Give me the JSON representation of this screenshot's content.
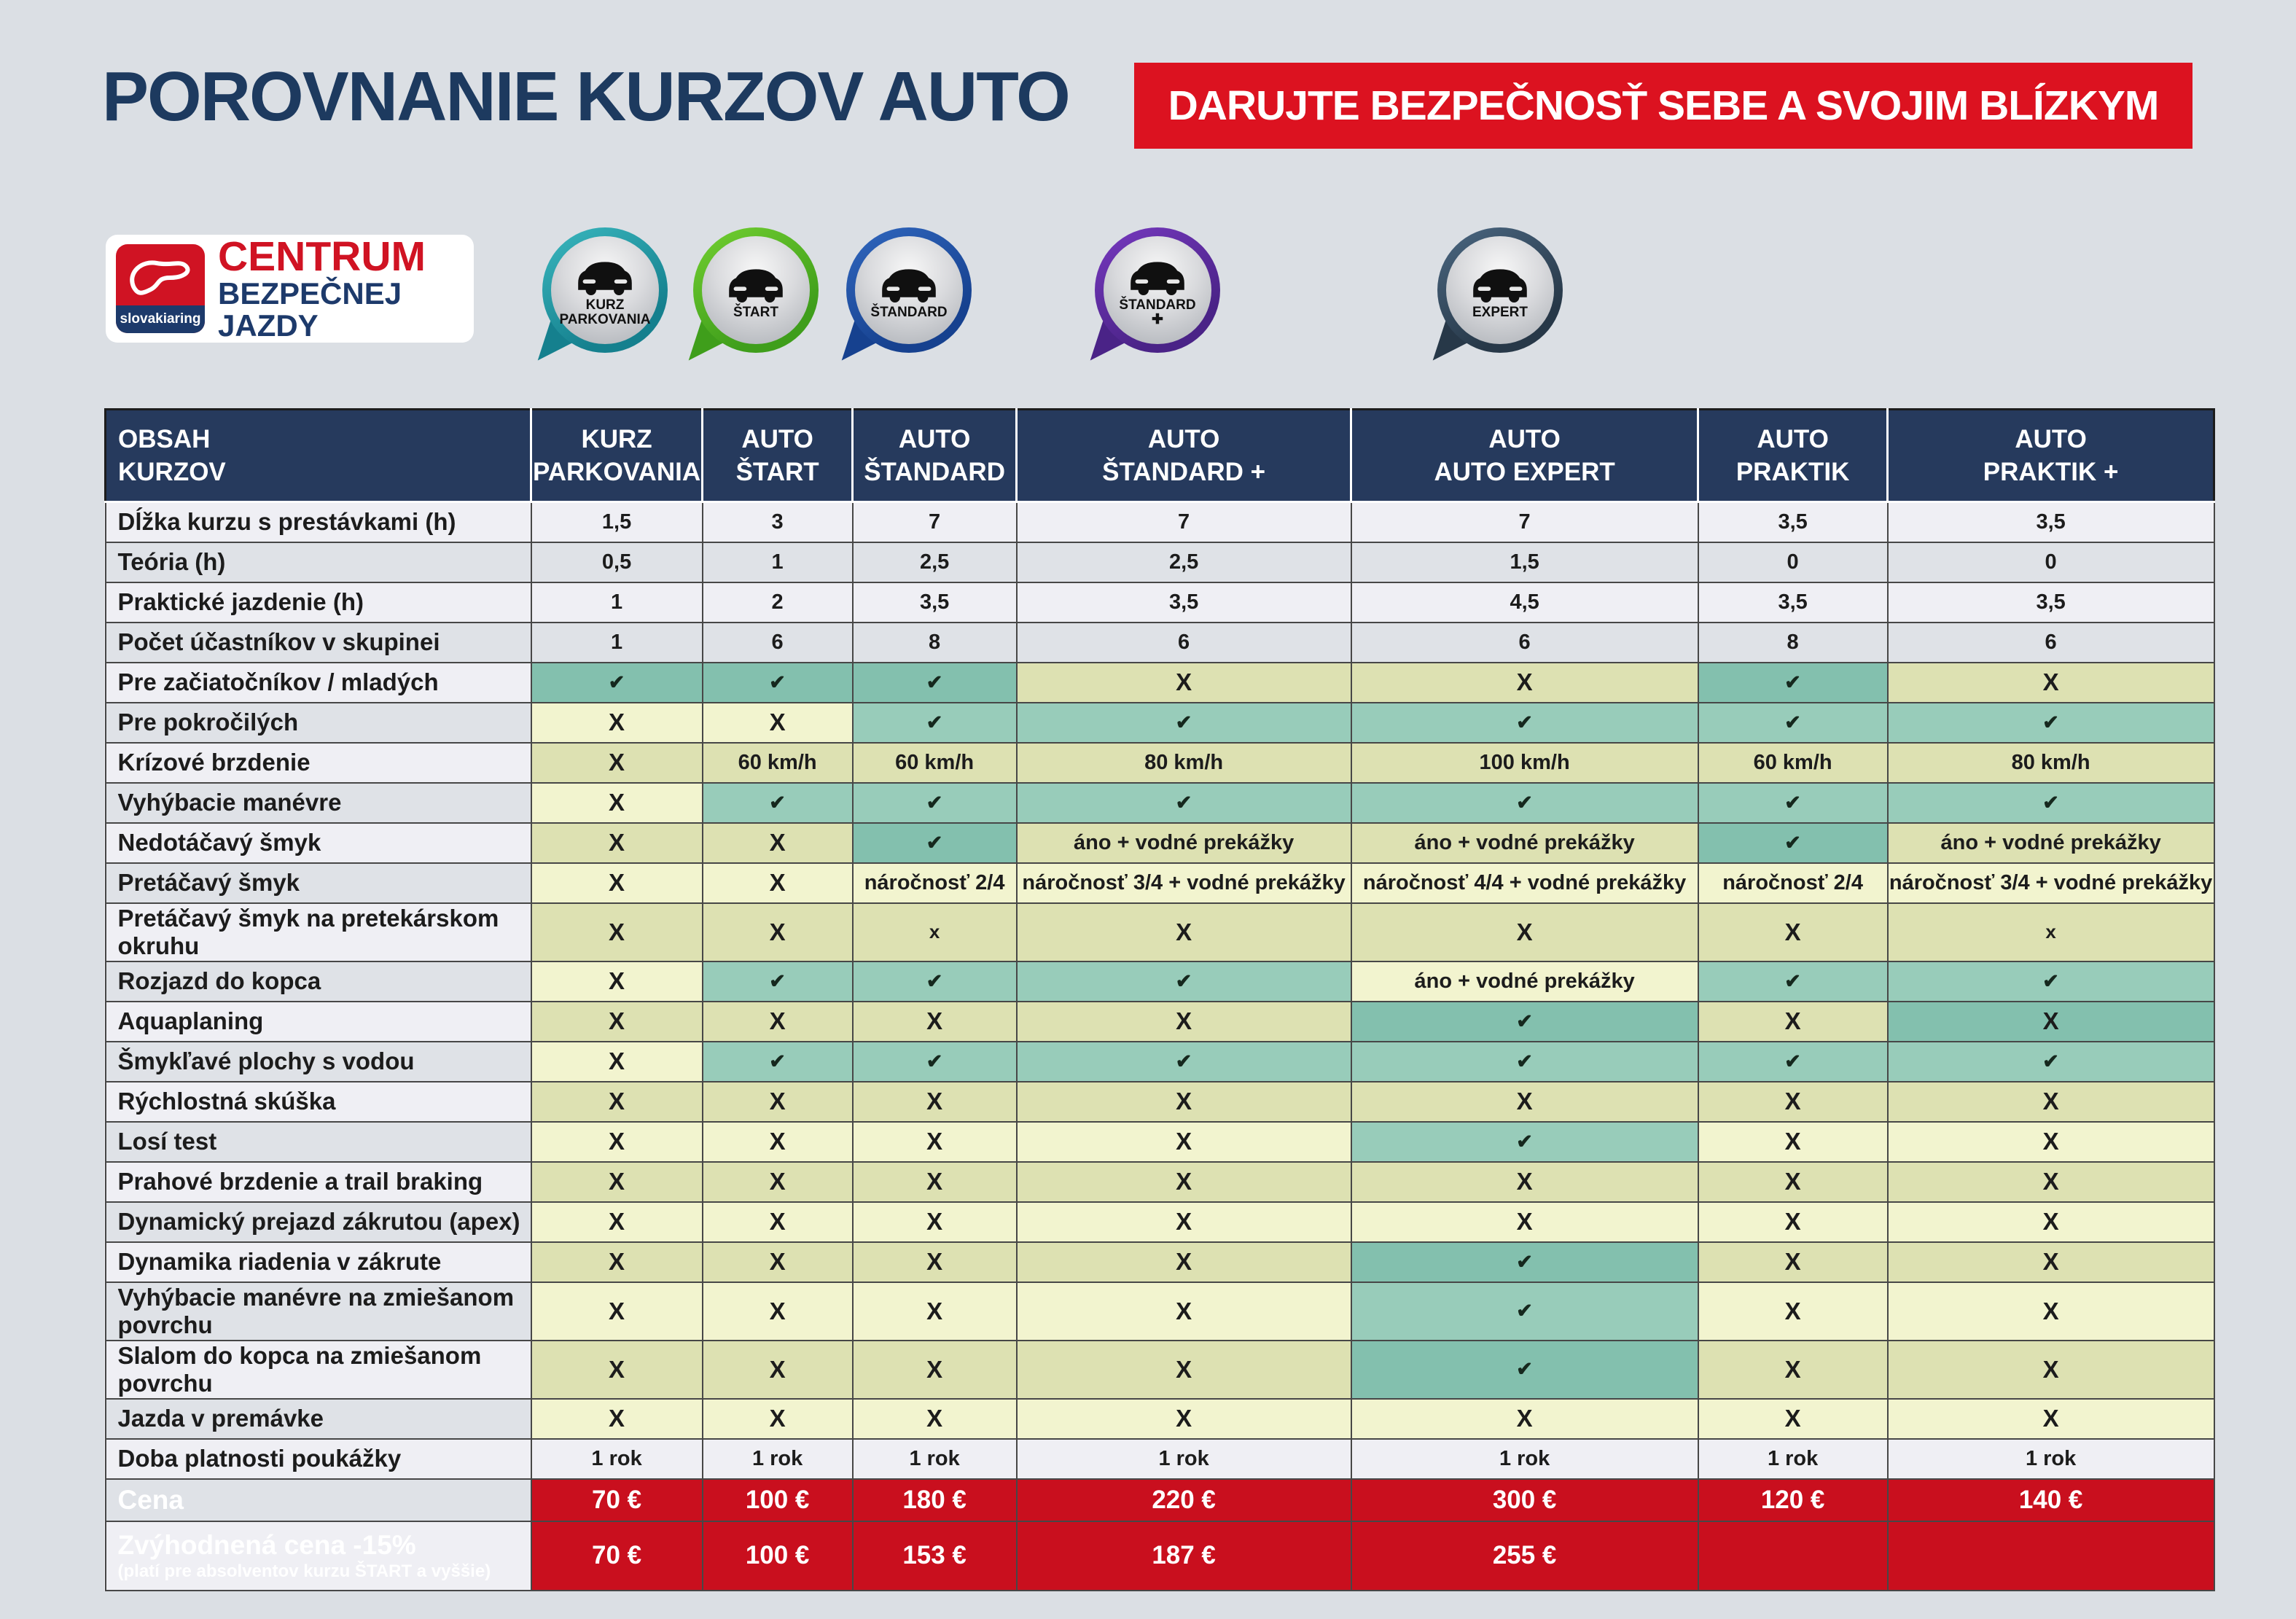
{
  "page": {
    "title": "POROVNANIE KURZOV AUTO",
    "banner": "DARUJTE BEZPEČNOSŤ SEBE A SVOJIM BLÍZKYM"
  },
  "logo": {
    "brand": "slovakiaring",
    "line1": "CENTRUM",
    "line2": "BEZPEČNEJ JAZDY"
  },
  "badges": [
    {
      "label": "KURZ\nPARKOVANIA",
      "icon": "parking-car",
      "color_light": "#35b0b8",
      "color_dark": "#15808e"
    },
    {
      "label": "ŠTART",
      "icon": "cars-traffic-light",
      "color_light": "#6cc92e",
      "color_dark": "#3f9e1b"
    },
    {
      "label": "ŠTANDARD",
      "icon": "car-skid-cone",
      "color_light": "#2d62b8",
      "color_dark": "#16418f"
    },
    {
      "label": "ŠTANDARD\n✚",
      "icon": "car-skid-cone",
      "color_light": "#7136b8",
      "color_dark": "#4a2387"
    },
    {
      "label": "EXPERT",
      "icon": "car-skid-cone",
      "color_light": "#46617a",
      "color_dark": "#273848"
    }
  ],
  "table": {
    "header": [
      "OBSAH\nKURZOV",
      "KURZ\nPARKOVANIA",
      "AUTO\nŠTART",
      "AUTO\nŠTANDARD",
      "AUTO\nŠTANDARD +",
      "AUTO\nAUTO EXPERT",
      "AUTO\nPRAKTIK",
      "AUTO\nPRAKTIK +"
    ],
    "rows": [
      {
        "label": "Dĺžka kurzu s prestávkami (h)",
        "cells": [
          {
            "t": "1,5",
            "bg": "s"
          },
          {
            "t": "3",
            "bg": "s"
          },
          {
            "t": "7",
            "bg": "s"
          },
          {
            "t": "7",
            "bg": "s"
          },
          {
            "t": "7",
            "bg": "s"
          },
          {
            "t": "3,5",
            "bg": "s"
          },
          {
            "t": "3,5",
            "bg": "s"
          }
        ]
      },
      {
        "label": "Teória (h)",
        "cells": [
          {
            "t": "0,5",
            "bg": "s"
          },
          {
            "t": "1",
            "bg": "s"
          },
          {
            "t": "2,5",
            "bg": "s"
          },
          {
            "t": "2,5",
            "bg": "s"
          },
          {
            "t": "1,5",
            "bg": "s"
          },
          {
            "t": "0",
            "bg": "s"
          },
          {
            "t": "0",
            "bg": "s"
          }
        ]
      },
      {
        "label": "Praktické jazdenie (h)",
        "cells": [
          {
            "t": "1",
            "bg": "s"
          },
          {
            "t": "2",
            "bg": "s"
          },
          {
            "t": "3,5",
            "bg": "s"
          },
          {
            "t": "3,5",
            "bg": "s"
          },
          {
            "t": "4,5",
            "bg": "s"
          },
          {
            "t": "3,5",
            "bg": "s"
          },
          {
            "t": "3,5",
            "bg": "s"
          }
        ]
      },
      {
        "label": "Počet účastníkov v skupinei",
        "cells": [
          {
            "t": "1",
            "bg": "s"
          },
          {
            "t": "6",
            "bg": "s"
          },
          {
            "t": "8",
            "bg": "s"
          },
          {
            "t": "6",
            "bg": "s"
          },
          {
            "t": "6",
            "bg": "s"
          },
          {
            "t": "8",
            "bg": "s"
          },
          {
            "t": "6",
            "bg": "s"
          }
        ]
      },
      {
        "label": "Pre začiatočníkov / mladých",
        "cells": [
          {
            "t": "✔",
            "bg": "t"
          },
          {
            "t": "✔",
            "bg": "t"
          },
          {
            "t": "✔",
            "bg": "t"
          },
          {
            "t": "X",
            "bg": "y"
          },
          {
            "t": "X",
            "bg": "y"
          },
          {
            "t": "✔",
            "bg": "t"
          },
          {
            "t": "X",
            "bg": "y"
          }
        ]
      },
      {
        "label": "Pre pokročilých",
        "cells": [
          {
            "t": "X",
            "bg": "y"
          },
          {
            "t": "X",
            "bg": "y"
          },
          {
            "t": "✔",
            "bg": "t"
          },
          {
            "t": "✔",
            "bg": "t"
          },
          {
            "t": "✔",
            "bg": "t"
          },
          {
            "t": "✔",
            "bg": "t"
          },
          {
            "t": "✔",
            "bg": "t"
          }
        ]
      },
      {
        "label": "Krízové brzdenie",
        "cells": [
          {
            "t": "X",
            "bg": "y"
          },
          {
            "t": "60 km/h",
            "bg": "y"
          },
          {
            "t": "60 km/h",
            "bg": "y"
          },
          {
            "t": "80 km/h",
            "bg": "y"
          },
          {
            "t": "100 km/h",
            "bg": "y"
          },
          {
            "t": "60 km/h",
            "bg": "y"
          },
          {
            "t": "80 km/h",
            "bg": "y"
          }
        ]
      },
      {
        "label": "Vyhýbacie manévre",
        "cells": [
          {
            "t": "X",
            "bg": "y"
          },
          {
            "t": "✔",
            "bg": "t"
          },
          {
            "t": "✔",
            "bg": "t"
          },
          {
            "t": "✔",
            "bg": "t"
          },
          {
            "t": "✔",
            "bg": "t"
          },
          {
            "t": "✔",
            "bg": "t"
          },
          {
            "t": "✔",
            "bg": "t"
          }
        ]
      },
      {
        "label": "Nedotáčavý šmyk",
        "cells": [
          {
            "t": "X",
            "bg": "y"
          },
          {
            "t": "X",
            "bg": "y"
          },
          {
            "t": "✔",
            "bg": "t"
          },
          {
            "t": "áno + vodné prekážky",
            "bg": "y"
          },
          {
            "t": "áno + vodné prekážky",
            "bg": "y"
          },
          {
            "t": "✔",
            "bg": "t"
          },
          {
            "t": "áno + vodné prekážky",
            "bg": "y"
          }
        ]
      },
      {
        "label": "Pretáčavý šmyk",
        "cells": [
          {
            "t": "X",
            "bg": "y"
          },
          {
            "t": "X",
            "bg": "y"
          },
          {
            "t": "náročnosť 2/4",
            "bg": "y"
          },
          {
            "t": "náročnosť 3/4 + vodné prekážky",
            "bg": "y"
          },
          {
            "t": "náročnosť 4/4 + vodné prekážky",
            "bg": "y"
          },
          {
            "t": "náročnosť 2/4",
            "bg": "y"
          },
          {
            "t": "náročnosť 3/4 + vodné prekážky",
            "bg": "y"
          }
        ]
      },
      {
        "label": "Pretáčavý šmyk na pretekárskom okruhu",
        "cells": [
          {
            "t": "X",
            "bg": "y"
          },
          {
            "t": "X",
            "bg": "y"
          },
          {
            "t": "x",
            "bg": "y"
          },
          {
            "t": "X",
            "bg": "y"
          },
          {
            "t": "X",
            "bg": "y"
          },
          {
            "t": "X",
            "bg": "y"
          },
          {
            "t": "x",
            "bg": "y"
          }
        ]
      },
      {
        "label": "Rozjazd do kopca",
        "cells": [
          {
            "t": "X",
            "bg": "y"
          },
          {
            "t": "✔",
            "bg": "t"
          },
          {
            "t": "✔",
            "bg": "t"
          },
          {
            "t": "✔",
            "bg": "t"
          },
          {
            "t": "áno + vodné prekážky",
            "bg": "y"
          },
          {
            "t": "✔",
            "bg": "t"
          },
          {
            "t": "✔",
            "bg": "t"
          }
        ]
      },
      {
        "label": "Aquaplaning",
        "cells": [
          {
            "t": "X",
            "bg": "y"
          },
          {
            "t": "X",
            "bg": "y"
          },
          {
            "t": "X",
            "bg": "y"
          },
          {
            "t": "X",
            "bg": "y"
          },
          {
            "t": "✔",
            "bg": "t"
          },
          {
            "t": "X",
            "bg": "y"
          },
          {
            "t": "X",
            "bg": "t"
          }
        ]
      },
      {
        "label": "Šmykľavé plochy s vodou",
        "cells": [
          {
            "t": "X",
            "bg": "y"
          },
          {
            "t": "✔",
            "bg": "t"
          },
          {
            "t": "✔",
            "bg": "t"
          },
          {
            "t": "✔",
            "bg": "t"
          },
          {
            "t": "✔",
            "bg": "t"
          },
          {
            "t": "✔",
            "bg": "t"
          },
          {
            "t": "✔",
            "bg": "t"
          }
        ]
      },
      {
        "label": "Rýchlostná skúška",
        "cells": [
          {
            "t": "X",
            "bg": "y"
          },
          {
            "t": "X",
            "bg": "y"
          },
          {
            "t": "X",
            "bg": "y"
          },
          {
            "t": "X",
            "bg": "y"
          },
          {
            "t": "X",
            "bg": "y"
          },
          {
            "t": "X",
            "bg": "y"
          },
          {
            "t": "X",
            "bg": "y"
          }
        ]
      },
      {
        "label": "Losí test",
        "cells": [
          {
            "t": "X",
            "bg": "y"
          },
          {
            "t": "X",
            "bg": "y"
          },
          {
            "t": "X",
            "bg": "y"
          },
          {
            "t": "X",
            "bg": "y"
          },
          {
            "t": "✔",
            "bg": "t"
          },
          {
            "t": "X",
            "bg": "y"
          },
          {
            "t": "X",
            "bg": "y"
          }
        ]
      },
      {
        "label": "Prahové brzdenie a trail braking",
        "cells": [
          {
            "t": "X",
            "bg": "y"
          },
          {
            "t": "X",
            "bg": "y"
          },
          {
            "t": "X",
            "bg": "y"
          },
          {
            "t": "X",
            "bg": "y"
          },
          {
            "t": "X",
            "bg": "y"
          },
          {
            "t": "X",
            "bg": "y"
          },
          {
            "t": "X",
            "bg": "y"
          }
        ]
      },
      {
        "label": "Dynamický prejazd zákrutou (apex)",
        "cells": [
          {
            "t": "X",
            "bg": "y"
          },
          {
            "t": "X",
            "bg": "y"
          },
          {
            "t": "X",
            "bg": "y"
          },
          {
            "t": "X",
            "bg": "y"
          },
          {
            "t": "X",
            "bg": "y"
          },
          {
            "t": "X",
            "bg": "y"
          },
          {
            "t": "X",
            "bg": "y"
          }
        ]
      },
      {
        "label": "Dynamika riadenia v zákrute",
        "cells": [
          {
            "t": "X",
            "bg": "y"
          },
          {
            "t": "X",
            "bg": "y"
          },
          {
            "t": "X",
            "bg": "y"
          },
          {
            "t": "X",
            "bg": "y"
          },
          {
            "t": "✔",
            "bg": "t"
          },
          {
            "t": "X",
            "bg": "y"
          },
          {
            "t": "X",
            "bg": "y"
          }
        ]
      },
      {
        "label": "Vyhýbacie manévre na zmiešanom povrchu",
        "cells": [
          {
            "t": "X",
            "bg": "y"
          },
          {
            "t": "X",
            "bg": "y"
          },
          {
            "t": "X",
            "bg": "y"
          },
          {
            "t": "X",
            "bg": "y"
          },
          {
            "t": "✔",
            "bg": "t"
          },
          {
            "t": "X",
            "bg": "y"
          },
          {
            "t": "X",
            "bg": "y"
          }
        ]
      },
      {
        "label": "Slalom do kopca na zmiešanom povrchu",
        "cells": [
          {
            "t": "X",
            "bg": "y"
          },
          {
            "t": "X",
            "bg": "y"
          },
          {
            "t": "X",
            "bg": "y"
          },
          {
            "t": "X",
            "bg": "y"
          },
          {
            "t": "✔",
            "bg": "t"
          },
          {
            "t": "X",
            "bg": "y"
          },
          {
            "t": "X",
            "bg": "y"
          }
        ]
      },
      {
        "label": "Jazda v premávke",
        "cells": [
          {
            "t": "X",
            "bg": "y"
          },
          {
            "t": "X",
            "bg": "y"
          },
          {
            "t": "X",
            "bg": "y"
          },
          {
            "t": "X",
            "bg": "y"
          },
          {
            "t": "X",
            "bg": "y"
          },
          {
            "t": "X",
            "bg": "y"
          },
          {
            "t": "X",
            "bg": "y"
          }
        ]
      },
      {
        "label": "Doba platnosti poukážky",
        "cells": [
          {
            "t": "1 rok",
            "bg": "s"
          },
          {
            "t": "1 rok",
            "bg": "s"
          },
          {
            "t": "1 rok",
            "bg": "s"
          },
          {
            "t": "1 rok",
            "bg": "s"
          },
          {
            "t": "1 rok",
            "bg": "s"
          },
          {
            "t": "1 rok",
            "bg": "s"
          },
          {
            "t": "1 rok",
            "bg": "s"
          }
        ]
      },
      {
        "label": "Cena",
        "kind": "price",
        "cells": [
          {
            "t": "70 €",
            "bg": "r"
          },
          {
            "t": "100 €",
            "bg": "r"
          },
          {
            "t": "180 €",
            "bg": "r"
          },
          {
            "t": "220 €",
            "bg": "r"
          },
          {
            "t": "300 €",
            "bg": "r"
          },
          {
            "t": "120 €",
            "bg": "r"
          },
          {
            "t": "140 €",
            "bg": "r"
          }
        ]
      },
      {
        "label": "Zvýhodnená cena -15%",
        "sub": "(platí pre absolventov kurzu ŠTART a vyššie)",
        "kind": "discount",
        "cells": [
          {
            "t": "70 €",
            "bg": "r"
          },
          {
            "t": "100 €",
            "bg": "r"
          },
          {
            "t": "153 €",
            "bg": "r"
          },
          {
            "t": "187 €",
            "bg": "r"
          },
          {
            "t": "255 €",
            "bg": "r"
          },
          {
            "t": "",
            "bg": "r"
          },
          {
            "t": "",
            "bg": "r"
          }
        ]
      }
    ]
  },
  "colors": {
    "accent_red": "#dc1220",
    "table_red": "#c90f1e",
    "header_navy": "#263a5d",
    "title_navy": "#1d3a5f",
    "teal_cell": "#98ccba",
    "yellow_cell": "#f2f4cf"
  }
}
